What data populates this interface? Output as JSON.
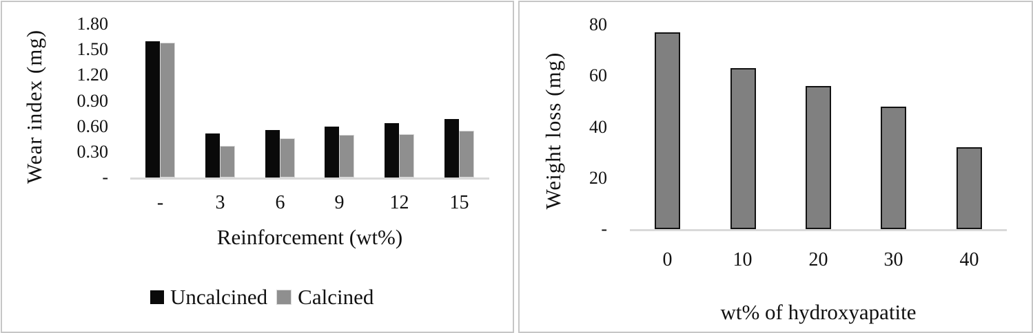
{
  "chart_data": [
    {
      "type": "bar",
      "title": "",
      "ylabel": "Wear index (mg)",
      "xlabel": "Reinforcement (wt%)",
      "categories": [
        "-",
        "3",
        "6",
        "9",
        "12",
        "15"
      ],
      "series": [
        {
          "name": "Uncalcined",
          "color": "#0a0a0a",
          "values": [
            1.6,
            0.52,
            0.56,
            0.6,
            0.64,
            0.69
          ]
        },
        {
          "name": "Calcined",
          "color": "#8f8f8f",
          "values": [
            1.58,
            0.37,
            0.46,
            0.5,
            0.51,
            0.55
          ]
        }
      ],
      "ylim": [
        0,
        1.8
      ],
      "yticks": [
        {
          "label": "1.80",
          "value": 1.8
        },
        {
          "label": "1.50",
          "value": 1.5
        },
        {
          "label": "1.20",
          "value": 1.2
        },
        {
          "label": "0.90",
          "value": 0.9
        },
        {
          "label": "0.60",
          "value": 0.6
        },
        {
          "label": "0.30",
          "value": 0.3
        },
        {
          "label": "-",
          "value": 0
        }
      ],
      "grid": false,
      "legend_position": "bottom"
    },
    {
      "type": "bar",
      "title": "",
      "ylabel": "Weight loss (mg)",
      "xlabel": "wt% of hydroxyapatite",
      "categories": [
        "0",
        "10",
        "20",
        "30",
        "40"
      ],
      "series": [
        {
          "name": "Weight loss",
          "color": "#808080",
          "values": [
            77,
            63,
            56,
            48,
            32
          ]
        }
      ],
      "ylim": [
        0,
        80
      ],
      "yticks": [
        {
          "label": "80",
          "value": 80
        },
        {
          "label": "60",
          "value": 60
        },
        {
          "label": "40",
          "value": 40
        },
        {
          "label": "20",
          "value": 20
        },
        {
          "label": "-",
          "value": 0
        }
      ],
      "grid": false,
      "legend_position": "none"
    }
  ],
  "colors": {
    "bar_black": "#0a0a0a",
    "bar_gray": "#8f8f8f",
    "bar_gray_outlined": "#808080",
    "axis_line": "#d9d9d9",
    "panel_border": "#c6c6c6",
    "text": "#111111"
  }
}
